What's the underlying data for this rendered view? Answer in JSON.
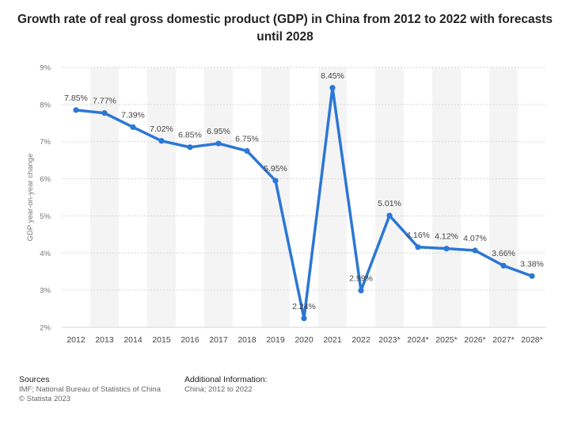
{
  "chart_data": {
    "type": "line",
    "title": "Growth rate of real gross domestic product (GDP) in China from 2012 to 2022 with forecasts until 2028",
    "ylabel": "GDP year-on-year change",
    "xlabel": "",
    "categories": [
      "2012",
      "2013",
      "2014",
      "2015",
      "2016",
      "2017",
      "2018",
      "2019",
      "2020",
      "2021",
      "2022",
      "2023*",
      "2024*",
      "2025*",
      "2026*",
      "2027*",
      "2028*"
    ],
    "values": [
      7.85,
      7.77,
      7.39,
      7.02,
      6.85,
      6.95,
      6.75,
      5.95,
      2.24,
      8.45,
      2.99,
      5.01,
      4.16,
      4.12,
      4.07,
      3.66,
      3.38
    ],
    "data_labels": [
      "7.85%",
      "7.77%",
      "7.39%",
      "7.02%",
      "6.85%",
      "6.95%",
      "6.75%",
      "5.95%",
      "2.24%",
      "8.45%",
      "2.99%",
      "5.01%",
      "4.16%",
      "4.12%",
      "4.07%",
      "3.66%",
      "3.38%"
    ],
    "ylim": [
      2,
      9
    ],
    "yticks": [
      {
        "value": 2,
        "label": "2%"
      },
      {
        "value": 3,
        "label": "3%"
      },
      {
        "value": 4,
        "label": "4%"
      },
      {
        "value": 5,
        "label": "5%"
      },
      {
        "value": 6,
        "label": "6%"
      },
      {
        "value": 7,
        "label": "7%"
      },
      {
        "value": 8,
        "label": "8%"
      },
      {
        "value": 9,
        "label": "9%"
      }
    ],
    "grid": true,
    "legend": "none",
    "colors": {
      "line": "#2b77d6",
      "band": "#f4f4f4",
      "grid": "#d6d6d6"
    }
  },
  "footer": {
    "sources_heading": "Sources",
    "sources_line1": "IMF; National Bureau of Statistics of China",
    "sources_line2": "© Statista 2023",
    "info_heading": "Additional Information:",
    "info_line1": "China; 2012 to 2022"
  }
}
